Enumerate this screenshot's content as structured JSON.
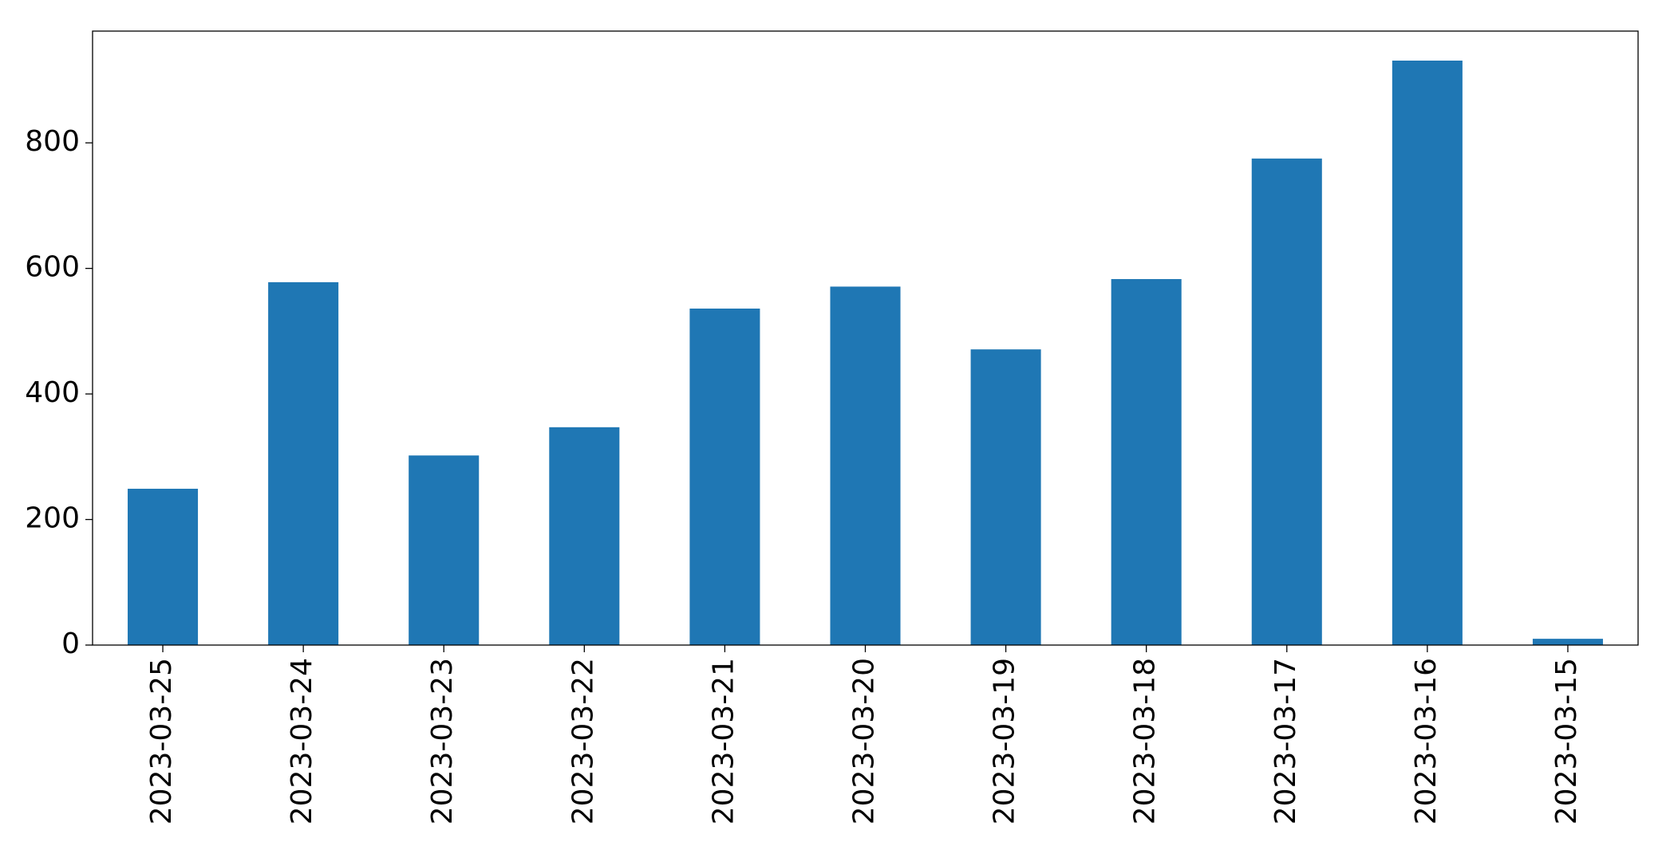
{
  "chart_data": {
    "type": "bar",
    "categories": [
      "2023-03-25",
      "2023-03-24",
      "2023-03-23",
      "2023-03-22",
      "2023-03-21",
      "2023-03-20",
      "2023-03-19",
      "2023-03-18",
      "2023-03-17",
      "2023-03-16",
      "2023-03-15"
    ],
    "values": [
      249,
      578,
      302,
      347,
      536,
      571,
      471,
      583,
      775,
      931,
      10
    ],
    "color": "#1f77b4",
    "ylim": [
      0,
      978
    ],
    "yticks": [
      0,
      200,
      400,
      600,
      800
    ],
    "grid": false
  }
}
